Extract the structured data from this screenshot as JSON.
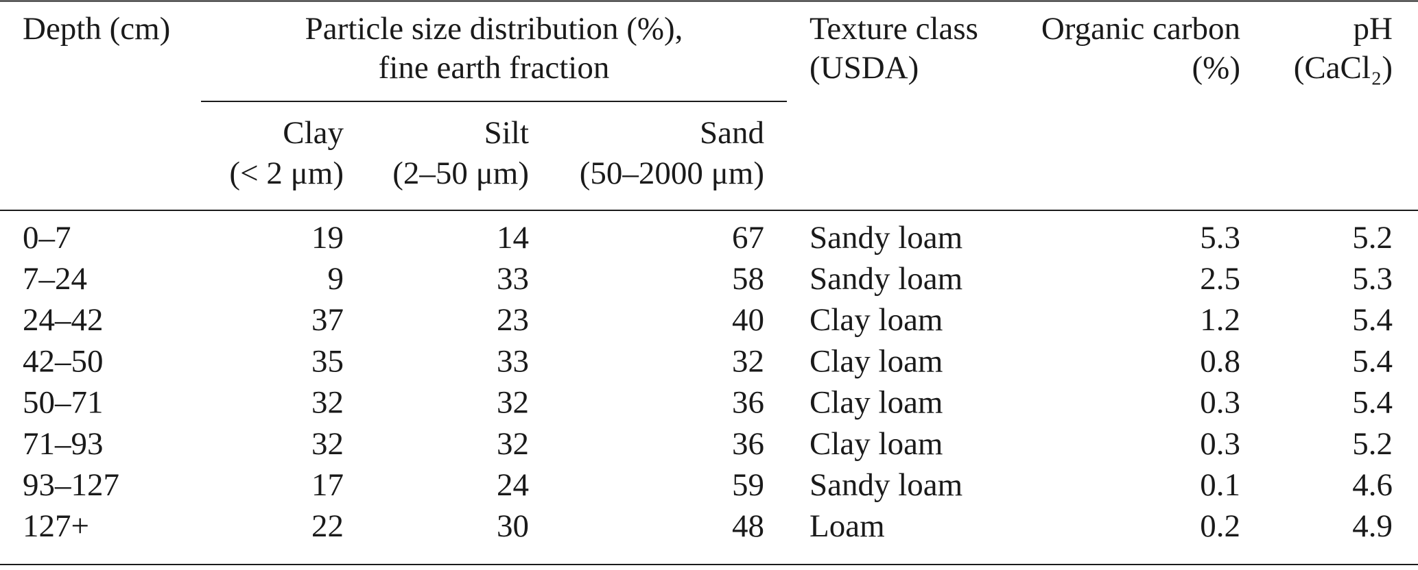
{
  "table": {
    "header": {
      "depth": "Depth (cm)",
      "particle_size": [
        "Particle size distribution (%),",
        "fine earth fraction"
      ],
      "texture": [
        "Texture class",
        "(USDA)"
      ],
      "organic_carbon": [
        "Organic carbon",
        "(%)"
      ],
      "ph": [
        "pH",
        "(CaCl₂)"
      ],
      "clay": [
        "Clay",
        "(< 2 μm)"
      ],
      "silt": [
        "Silt",
        "(2–50 μm)"
      ],
      "sand": [
        "Sand",
        "(50–2000 μm)"
      ]
    },
    "rows": [
      [
        "0–7",
        19,
        14,
        67,
        "Sandy loam",
        5.3,
        5.2
      ],
      [
        "7–24",
        9,
        33,
        58,
        "Sandy loam",
        2.5,
        5.3
      ],
      [
        "24–42",
        37,
        23,
        40,
        "Clay loam",
        1.2,
        5.4
      ],
      [
        "42–50",
        35,
        33,
        32,
        "Clay loam",
        0.8,
        5.4
      ],
      [
        "50–71",
        32,
        32,
        36,
        "Clay loam",
        0.3,
        5.4
      ],
      [
        "71–93",
        32,
        32,
        36,
        "Clay loam",
        0.3,
        5.2
      ],
      [
        "93–127",
        17,
        24,
        59,
        "Sandy loam",
        0.1,
        4.6
      ],
      [
        "127+",
        22,
        30,
        48,
        "Loam",
        0.2,
        4.9
      ]
    ]
  }
}
